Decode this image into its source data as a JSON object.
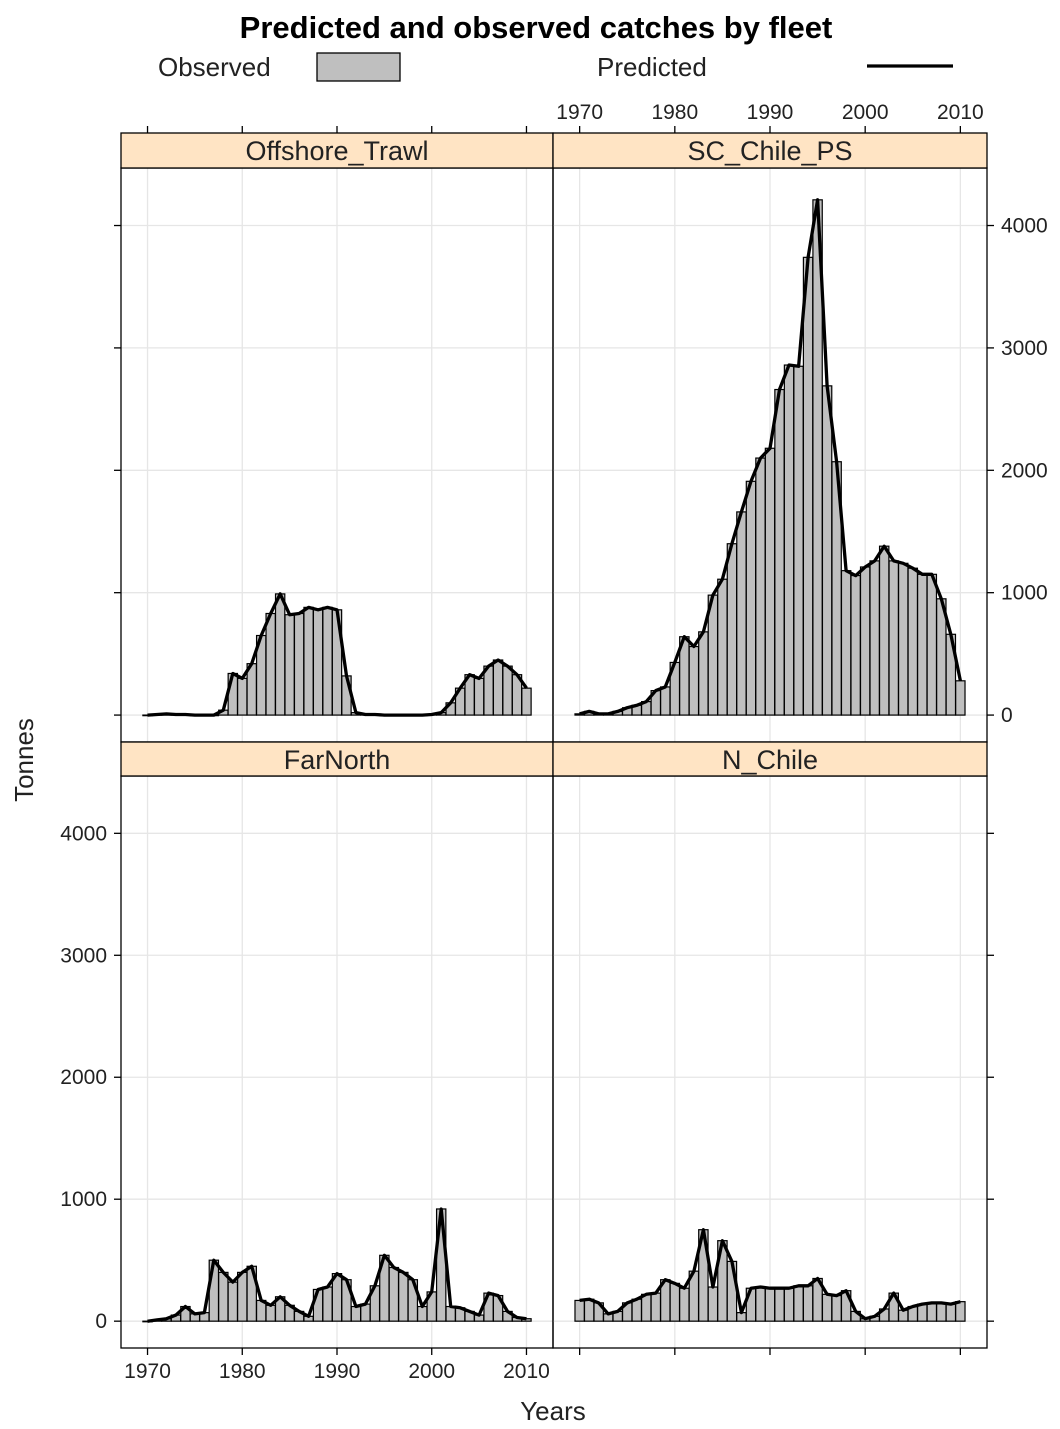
{
  "title": "Predicted and observed catches by fleet",
  "legend": {
    "observed_label": "Observed",
    "predicted_label": "Predicted"
  },
  "axes": {
    "xlabel": "Years",
    "ylabel": "Tonnes",
    "x_ticks": [
      1970,
      1980,
      1990,
      2000,
      2010
    ],
    "y_ticks": [
      0,
      1000,
      2000,
      3000,
      4000
    ],
    "x_tick_labels": [
      "1970",
      "1980",
      "1990",
      "2000",
      "2010"
    ],
    "y_tick_labels": [
      "0",
      "1000",
      "2000",
      "3000",
      "4000"
    ]
  },
  "colors": {
    "bar_fill": "#bfbfbf",
    "strip_fill": "#ffe4c4",
    "line": "#000000",
    "grid": "#e6e6e6"
  },
  "chart_data": {
    "type": "bar",
    "layout": "2x2 panels, shared axes",
    "x": [
      1970,
      1971,
      1972,
      1973,
      1974,
      1975,
      1976,
      1977,
      1978,
      1979,
      1980,
      1981,
      1982,
      1983,
      1984,
      1985,
      1986,
      1987,
      1988,
      1989,
      1990,
      1991,
      1992,
      1993,
      1994,
      1995,
      1996,
      1997,
      1998,
      1999,
      2000,
      2001,
      2002,
      2003,
      2004,
      2005,
      2006,
      2007,
      2008,
      2009,
      2010
    ],
    "xlim": [
      1967.2,
      2012.8
    ],
    "ylim": [
      -220,
      4470
    ],
    "grid": true,
    "legend_position": "top",
    "panels": [
      {
        "name": "Offshore_Trawl",
        "position": "top-left",
        "observed": [
          0,
          5,
          10,
          5,
          5,
          0,
          0,
          0,
          40,
          340,
          300,
          420,
          650,
          830,
          990,
          820,
          830,
          880,
          860,
          880,
          860,
          320,
          20,
          5,
          5,
          0,
          0,
          0,
          0,
          0,
          5,
          20,
          100,
          220,
          330,
          300,
          400,
          450,
          400,
          330,
          220
        ],
        "predicted": [
          0,
          5,
          10,
          5,
          5,
          0,
          0,
          0,
          40,
          340,
          300,
          420,
          650,
          830,
          990,
          820,
          830,
          880,
          860,
          880,
          860,
          320,
          20,
          5,
          5,
          0,
          0,
          0,
          0,
          0,
          5,
          20,
          100,
          220,
          330,
          300,
          400,
          450,
          400,
          330,
          220
        ]
      },
      {
        "name": "SC_Chile_PS",
        "position": "top-right",
        "observed": [
          10,
          30,
          10,
          10,
          30,
          60,
          80,
          110,
          200,
          230,
          430,
          640,
          560,
          680,
          980,
          1110,
          1400,
          1660,
          1910,
          2100,
          2180,
          2660,
          2860,
          2850,
          3740,
          4210,
          2690,
          2070,
          1180,
          1140,
          1210,
          1260,
          1380,
          1260,
          1240,
          1200,
          1150,
          1150,
          950,
          660,
          280
        ],
        "predicted": [
          10,
          30,
          10,
          10,
          30,
          60,
          80,
          110,
          200,
          230,
          430,
          640,
          560,
          680,
          980,
          1110,
          1400,
          1660,
          1910,
          2100,
          2180,
          2660,
          2860,
          2850,
          3740,
          4210,
          2690,
          2070,
          1180,
          1140,
          1210,
          1260,
          1380,
          1260,
          1240,
          1200,
          1150,
          1150,
          950,
          660,
          280
        ]
      },
      {
        "name": "FarNorth",
        "position": "bottom-left",
        "observed": [
          0,
          10,
          20,
          50,
          120,
          60,
          70,
          500,
          400,
          320,
          400,
          450,
          170,
          130,
          200,
          130,
          80,
          40,
          260,
          280,
          390,
          340,
          120,
          140,
          290,
          540,
          440,
          400,
          340,
          120,
          240,
          920,
          120,
          110,
          80,
          50,
          230,
          210,
          80,
          30,
          20
        ],
        "predicted": [
          0,
          10,
          20,
          50,
          120,
          60,
          70,
          500,
          400,
          320,
          400,
          450,
          170,
          130,
          200,
          130,
          80,
          40,
          260,
          280,
          390,
          340,
          120,
          140,
          290,
          540,
          440,
          400,
          340,
          120,
          240,
          920,
          120,
          110,
          80,
          50,
          230,
          210,
          80,
          30,
          20
        ]
      },
      {
        "name": "N_Chile",
        "position": "bottom-right",
        "observed": [
          170,
          180,
          150,
          60,
          80,
          150,
          180,
          220,
          230,
          340,
          310,
          270,
          410,
          750,
          280,
          660,
          490,
          70,
          270,
          280,
          270,
          270,
          270,
          290,
          290,
          350,
          220,
          210,
          250,
          80,
          20,
          40,
          100,
          230,
          90,
          120,
          140,
          150,
          150,
          140,
          160
        ],
        "predicted": [
          170,
          180,
          150,
          60,
          80,
          150,
          180,
          220,
          230,
          340,
          310,
          270,
          410,
          750,
          280,
          660,
          490,
          70,
          270,
          280,
          270,
          270,
          270,
          290,
          290,
          350,
          220,
          210,
          250,
          80,
          20,
          40,
          100,
          230,
          90,
          120,
          140,
          150,
          150,
          140,
          160
        ]
      }
    ]
  }
}
